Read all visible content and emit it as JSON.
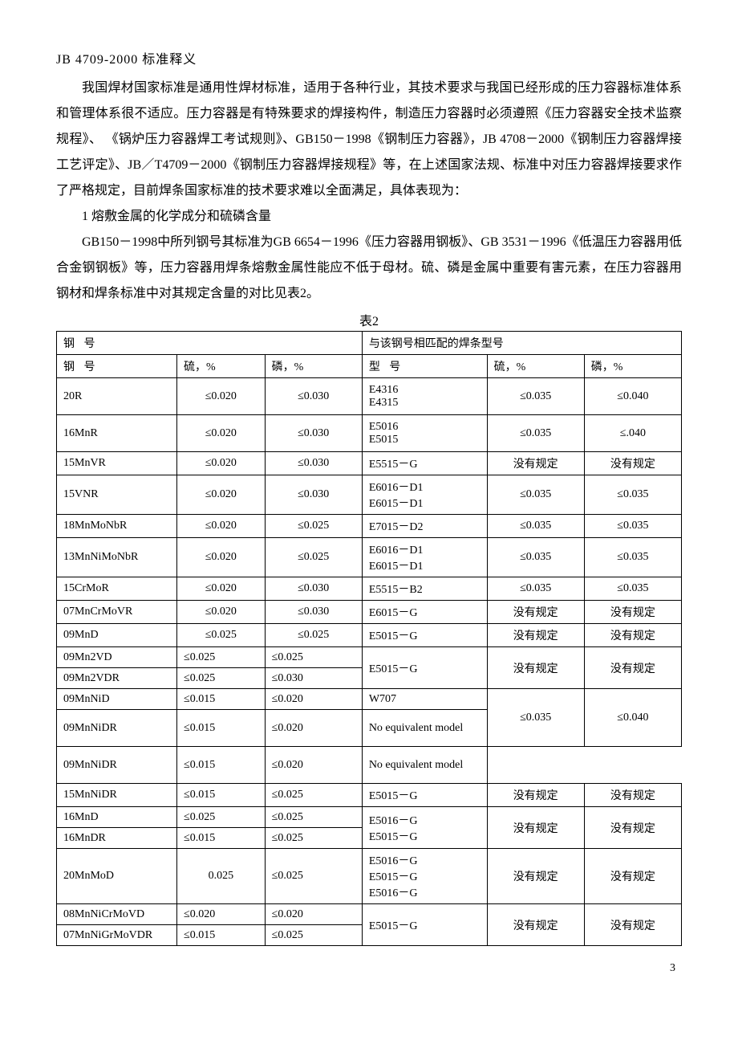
{
  "header": "JB  4709-2000  标准释义",
  "paragraphs": {
    "p1": "我国焊材国家标准是通用性焊材标准，适用于各种行业，其技术要求与我国已经形成的压力容器标准体系和管理体系很不适应。压力容器是有特殊要求的焊接构件，制造压力容器时必须遵照《压力容器安全技术监察规程》、 《锅炉压力容器焊工考试规则》、GB150－1998《钢制压力容器》，JB 4708－2000《钢制压力容器焊接工艺评定》、JB／T4709－2000《钢制压力容器焊接规程》等，在上述国家法规、标准中对压力容器焊接要求作了严格规定，目前焊条国家标准的技术要求难以全面满足，具体表现为：",
    "section": "1  熔敷金属的化学成分和硫磷含量",
    "p2": "GB150－1998中所列钢号其标准为GB 6654－1996《压力容器用钢板》、GB 3531－1996《低温压力容器用低合金钢钢板》等，压力容器用焊条熔敷金属性能应不低于母材。硫、磷是金属中重要有害元素，在压力容器用钢材和焊条标准中对其规定含量的对比见表2。"
  },
  "table_caption": "表2",
  "headers": {
    "steel_group": "钢    号",
    "weld_group": "与该钢号相匹配的焊条型号",
    "steel": "钢   号",
    "sulfur": "硫，%",
    "phos": "磷，%",
    "model": "型   号"
  },
  "rows": [
    {
      "steel": "20R",
      "s": "≤0.020",
      "p": "≤0.030",
      "model": "E4316\nE4315",
      "ws": "≤0.035",
      "wp": "≤0.040",
      "span": 1
    },
    {
      "steel": "16MnR",
      "s": "≤0.020",
      "p": "≤0.030",
      "model": "E5016\nE5015",
      "ws": "≤0.035",
      "wp": "≤.040",
      "span": 1
    },
    {
      "steel": "15MnVR",
      "s": "≤0.020",
      "p": "≤0.030",
      "model": "E5515－G",
      "ws": "没有规定",
      "wp": "没有规定",
      "span": 1
    },
    {
      "steel": "15VNR",
      "s": "≤0.020",
      "p": "≤0.030",
      "model": "E6016－D1\nE6015－D1",
      "ws": "≤0.035",
      "wp": "≤0.035",
      "span": 1
    },
    {
      "steel": "18MnMoNbR",
      "s": "≤0.020",
      "p": "≤0.025",
      "model": "E7015－D2",
      "ws": "≤0.035",
      "wp": "≤0.035",
      "span": 1
    },
    {
      "steel": "13MnNiMoNbR",
      "s": "≤0.020",
      "p": "≤0.025",
      "model": "E6016－D1\nE6015－D1",
      "ws": "≤0.035",
      "wp": "≤0.035",
      "span": 1
    },
    {
      "steel": "15CrMoR",
      "s": "≤0.020",
      "p": "≤0.030",
      "model": "E5515－B2",
      "ws": "≤0.035",
      "wp": "≤0.035",
      "span": 1
    },
    {
      "steel": "07MnCrMoVR",
      "s": "≤0.020",
      "p": "≤0.030",
      "model": "E6015－G",
      "ws": "没有规定",
      "wp": "没有规定",
      "span": 1
    },
    {
      "steel": "09MnD",
      "s": "≤0.025",
      "p": "≤0.025",
      "model": "E5015－G",
      "ws": "没有规定",
      "wp": "没有规定",
      "span": 1
    }
  ],
  "group_rows": [
    {
      "steels": [
        {
          "n": "09Mn2VD",
          "s": "≤0.025",
          "p": "≤0.025"
        },
        {
          "n": "09Mn2VDR",
          "s": "≤0.025",
          "p": "≤0.030"
        }
      ],
      "model": "E5015－G",
      "ws": "没有规定",
      "wp": "没有规定"
    },
    {
      "steels": [
        {
          "n": "09MnNiD",
          "s": "≤0.015",
          "p": "≤0.020"
        },
        {
          "n": "09MnNiDR",
          "s": "≤0.015",
          "p": "≤0.020"
        }
      ],
      "model_rows": [
        "W707",
        "No   equivalent model"
      ],
      "ws": "≤0.035",
      "wp": "≤0.040"
    },
    {
      "steels": [
        {
          "n": "15MnNiDR",
          "s": "≤0.015",
          "p": "≤0.025"
        }
      ],
      "model": "E5015－G",
      "ws": "没有规定",
      "wp": "没有规定"
    },
    {
      "steels": [
        {
          "n": "16MnD",
          "s": "≤0.025",
          "p": "≤0.025"
        },
        {
          "n": "16MnDR",
          "s": "≤0.015",
          "p": "≤0.025"
        }
      ],
      "model": "E5016－G\nE5015－G",
      "ws": "没有规定",
      "wp": "没有规定"
    },
    {
      "steels": [
        {
          "n": "20MnMoD",
          "s": "0.025",
          "p": "≤0.025"
        }
      ],
      "model": "E5016－G\nE5015－G\nE5016－G",
      "ws": "没有规定",
      "wp": "没有规定"
    },
    {
      "steels": [
        {
          "n": "08MnNiCrMoVD",
          "s": "≤0.020",
          "p": "≤0.020"
        },
        {
          "n": "07MnNiGrMoVDR",
          "s": "≤0.015",
          "p": "≤0.025"
        }
      ],
      "model": "E5015－G",
      "ws": "没有规定",
      "wp": "没有规定"
    }
  ],
  "page_number": "3"
}
